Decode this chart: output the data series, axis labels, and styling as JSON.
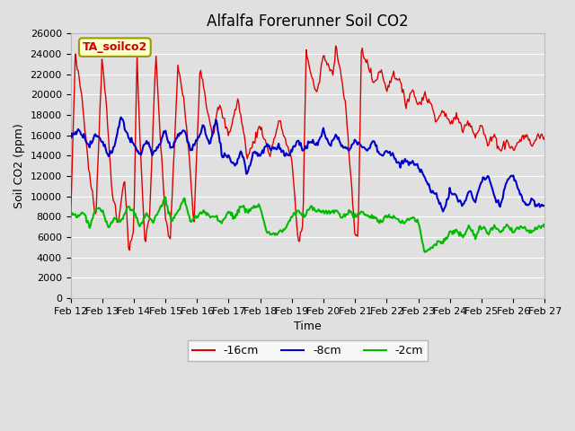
{
  "title": "Alfalfa Forerunner Soil CO2",
  "xlabel": "Time",
  "ylabel": "Soil CO2 (ppm)",
  "annotation": "TA_soilco2",
  "ylim": [
    0,
    26000
  ],
  "yticks": [
    0,
    2000,
    4000,
    6000,
    8000,
    10000,
    12000,
    14000,
    16000,
    18000,
    20000,
    22000,
    24000,
    26000
  ],
  "x_labels": [
    "Feb 12",
    "Feb 13",
    "Feb 14",
    "Feb 15",
    "Feb 16",
    "Feb 17",
    "Feb 18",
    "Feb 19",
    "Feb 20",
    "Feb 21",
    "Feb 22",
    "Feb 23",
    "Feb 24",
    "Feb 25",
    "Feb 26",
    "Feb 27"
  ],
  "line_colors": {
    "d16cm": "#dd0000",
    "d8cm": "#0000cc",
    "d2cm": "#00bb00"
  },
  "legend_labels": [
    "-16cm",
    "-8cm",
    "-2cm"
  ],
  "bg_color": "#e0e0e0",
  "plot_bg": "#e0e0e0",
  "grid_color": "#ffffff",
  "annotation_bg": "#ffffcc",
  "annotation_border": "#999900",
  "annotation_text_color": "#cc0000",
  "title_fontsize": 12,
  "axis_label_fontsize": 9,
  "tick_fontsize": 8,
  "legend_fontsize": 9
}
